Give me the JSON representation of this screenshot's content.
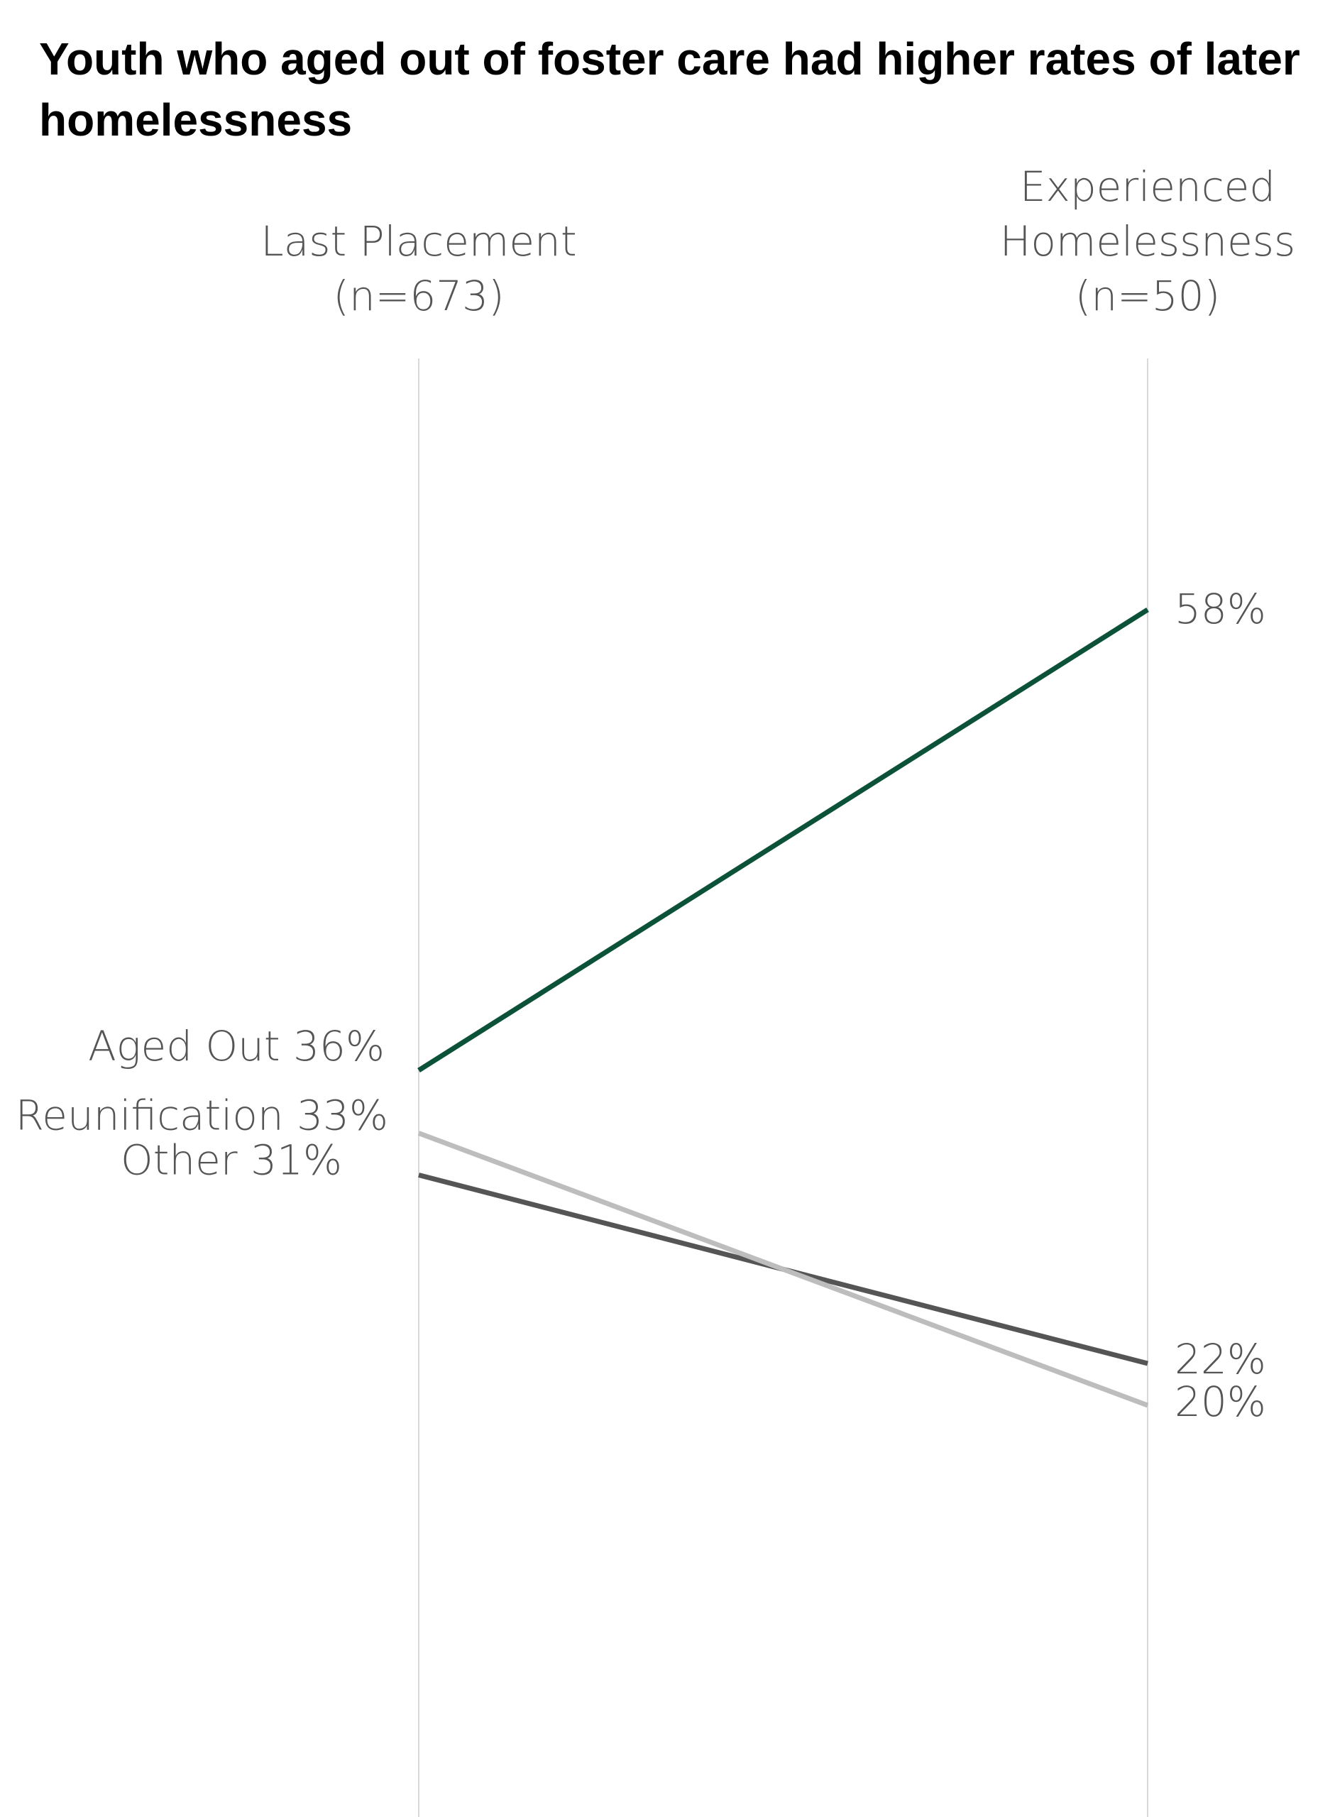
{
  "chart_data": {
    "type": "line",
    "title": "Youth who aged out of foster care had higher rates of later homelessness",
    "categories": [
      {
        "lines": [
          "Last Placement",
          "(n=673)"
        ]
      },
      {
        "lines": [
          "Experienced",
          "Homelessness",
          "(n=50)"
        ]
      }
    ],
    "series": [
      {
        "name": "Aged Out",
        "values": [
          36,
          58
        ],
        "color": "#0b5239",
        "start_label": "Aged Out 36%",
        "end_label": "58%"
      },
      {
        "name": "Reunification",
        "values": [
          33,
          20
        ],
        "color": "#bdbdbd",
        "start_label": "Reunification 33%",
        "end_label": "20%"
      },
      {
        "name": "Other",
        "values": [
          31,
          22
        ],
        "color": "#555555",
        "start_label": "Other 31%",
        "end_label": "22%"
      }
    ],
    "colors": {
      "axis_line": "#d9d9d9",
      "label_text": "#555555",
      "title_text": "#000000"
    }
  }
}
